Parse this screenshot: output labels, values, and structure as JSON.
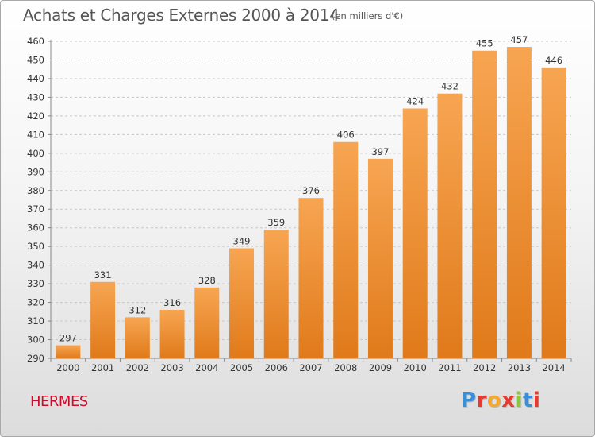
{
  "title": "Achats et Charges Externes 2000 à 2014",
  "subtitle": "(en milliers d'€)",
  "commune": "HERMES",
  "logo": {
    "text": "Proxiti",
    "letter_colors": [
      "#3a8fd6",
      "#e53a2f",
      "#f4a92d",
      "#e53a2f",
      "#8cc63f",
      "#3a8fd6",
      "#e53a2f"
    ]
  },
  "colors": {
    "bar_light": "#f7a552",
    "bar_dark": "#e07a1a",
    "grid": "#c8c8c8",
    "axis_text": "#333333"
  },
  "chart_data": {
    "type": "bar",
    "categories": [
      "2000",
      "2001",
      "2002",
      "2003",
      "2004",
      "2005",
      "2006",
      "2007",
      "2008",
      "2009",
      "2010",
      "2011",
      "2012",
      "2013",
      "2014"
    ],
    "values": [
      297,
      331,
      312,
      316,
      328,
      349,
      359,
      376,
      406,
      397,
      424,
      432,
      455,
      457,
      446
    ],
    "yticks": [
      290,
      300,
      310,
      320,
      330,
      340,
      350,
      360,
      370,
      380,
      390,
      400,
      410,
      420,
      430,
      440,
      450,
      460
    ],
    "ylim": [
      290,
      460
    ],
    "grid": true,
    "data_labels": true
  }
}
